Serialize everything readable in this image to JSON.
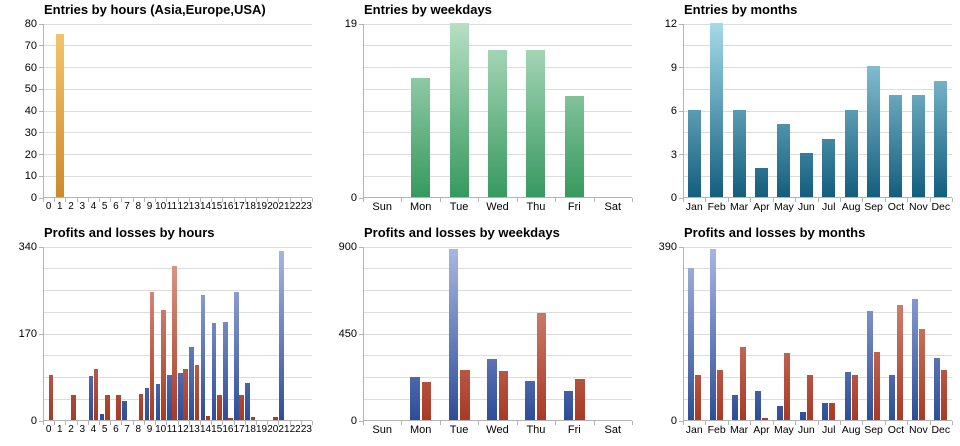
{
  "chart_data": [
    {
      "type": "bar",
      "title": "Entries by hours (Asia,Europe,USA)",
      "categories": [
        "0",
        "1",
        "2",
        "3",
        "4",
        "5",
        "6",
        "7",
        "8",
        "9",
        "10",
        "11",
        "12",
        "13",
        "14",
        "15",
        "16",
        "17",
        "18",
        "19",
        "20",
        "21",
        "22",
        "23"
      ],
      "series": [
        {
          "name": "entries",
          "color_top": "#f6c870",
          "color_bottom": "#cd8a2b",
          "values": [
            0,
            75,
            0,
            0,
            0,
            0,
            0,
            0,
            0,
            0,
            0,
            0,
            0,
            0,
            0,
            0,
            0,
            0,
            0,
            0,
            0,
            0,
            0,
            0
          ]
        }
      ],
      "ylim": [
        0,
        80
      ],
      "ytick_labels": [
        0,
        10,
        20,
        30,
        40,
        50,
        60,
        70,
        80
      ],
      "grid_divisions": 8,
      "grid": "on",
      "legend_position": "none"
    },
    {
      "type": "bar",
      "title": "Entries by weekdays",
      "categories": [
        "Sun",
        "Mon",
        "Tue",
        "Wed",
        "Thu",
        "Fri",
        "Sat"
      ],
      "series": [
        {
          "name": "entries",
          "color_top": "#b7dfc4",
          "color_bottom": "#37995f",
          "values": [
            0,
            13,
            19,
            16,
            16,
            11,
            0
          ]
        }
      ],
      "ylim": [
        0,
        19
      ],
      "ytick_labels": [
        0,
        19
      ],
      "grid_divisions": 8,
      "grid": "on",
      "legend_position": "none"
    },
    {
      "type": "bar",
      "title": "Entries by months",
      "categories": [
        "Jan",
        "Feb",
        "Mar",
        "Apr",
        "May",
        "Jun",
        "Jul",
        "Aug",
        "Sep",
        "Oct",
        "Nov",
        "Dec"
      ],
      "series": [
        {
          "name": "entries",
          "color_top": "#a5dbe9",
          "color_bottom": "#135e7e",
          "values": [
            6,
            12,
            6,
            2,
            5,
            3,
            4,
            6,
            9,
            7,
            7,
            8
          ]
        }
      ],
      "ylim": [
        0,
        12
      ],
      "ytick_labels": [
        0,
        3,
        6,
        9,
        12
      ],
      "grid_divisions": 8,
      "grid": "on",
      "legend_position": "none"
    },
    {
      "type": "bar",
      "title": "Profits and losses by hours",
      "categories": [
        "0",
        "1",
        "2",
        "3",
        "4",
        "5",
        "6",
        "7",
        "8",
        "9",
        "10",
        "11",
        "12",
        "13",
        "14",
        "15",
        "16",
        "17",
        "18",
        "19",
        "20",
        "21",
        "22",
        "23"
      ],
      "series": [
        {
          "name": "profits",
          "color_top": "#aab9e3",
          "color_bottom": "#2e4d99",
          "values": [
            0,
            0,
            0,
            0,
            85,
            12,
            0,
            38,
            0,
            62,
            71,
            88,
            91,
            142,
            244,
            189,
            191,
            251,
            72,
            0,
            0,
            330,
            0,
            0
          ]
        },
        {
          "name": "losses",
          "color_top": "#e0a08f",
          "color_bottom": "#a83a26",
          "values": [
            87,
            0,
            48,
            0,
            99,
            48,
            48,
            0,
            50,
            250,
            214,
            300,
            99,
            108,
            8,
            48,
            3,
            48,
            5,
            0,
            5,
            0,
            0,
            0
          ]
        }
      ],
      "ylim": [
        0,
        340
      ],
      "ytick_labels": [
        0,
        170,
        340
      ],
      "grid_divisions": 8,
      "grid": "on",
      "legend_position": "none"
    },
    {
      "type": "bar",
      "title": "Profits and losses by weekdays",
      "categories": [
        "Sun",
        "Mon",
        "Tue",
        "Wed",
        "Thu",
        "Fri",
        "Sat"
      ],
      "series": [
        {
          "name": "profits",
          "color_top": "#aab9e3",
          "color_bottom": "#2e4d99",
          "values": [
            0,
            220,
            885,
            317,
            204,
            152,
            0
          ]
        },
        {
          "name": "losses",
          "color_top": "#e0a08f",
          "color_bottom": "#a83a26",
          "values": [
            0,
            196,
            257,
            254,
            552,
            214,
            0
          ]
        }
      ],
      "ylim": [
        0,
        900
      ],
      "ytick_labels": [
        0,
        450,
        900
      ],
      "grid_divisions": 8,
      "grid": "on",
      "legend_position": "none"
    },
    {
      "type": "bar",
      "title": "Profits and losses by months",
      "categories": [
        "Jan",
        "Feb",
        "Mar",
        "Apr",
        "May",
        "Jun",
        "Jul",
        "Aug",
        "Sep",
        "Oct",
        "Nov",
        "Dec"
      ],
      "series": [
        {
          "name": "profits",
          "color_top": "#aab9e3",
          "color_bottom": "#2e4d99",
          "values": [
            340,
            383,
            57,
            64,
            31,
            19,
            38,
            108,
            244,
            101,
            272,
            139
          ]
        },
        {
          "name": "losses",
          "color_top": "#e0a08f",
          "color_bottom": "#a83a26",
          "values": [
            100,
            113,
            164,
            4,
            151,
            101,
            38,
            101,
            152,
            258,
            203,
            113
          ]
        }
      ],
      "ylim": [
        0,
        390
      ],
      "ytick_labels": [
        0,
        390
      ],
      "grid_divisions": 8,
      "grid": "on",
      "legend_position": "none"
    }
  ]
}
